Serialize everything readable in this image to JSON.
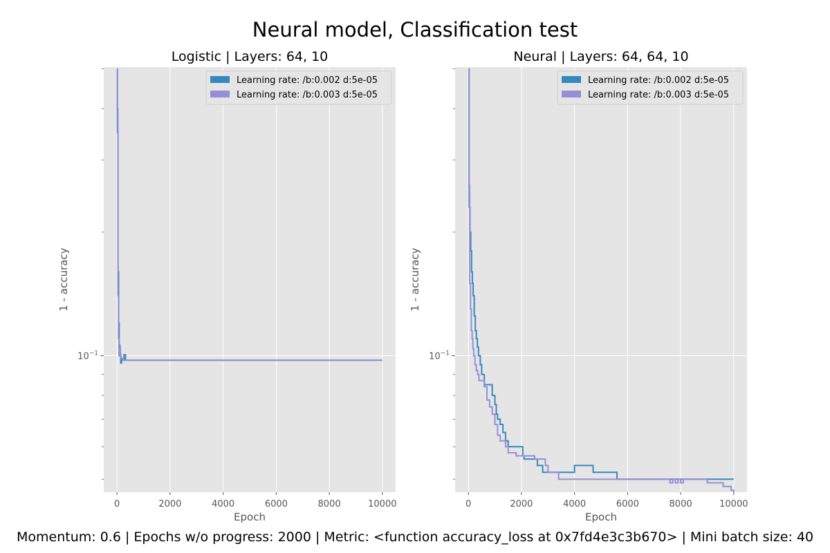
{
  "figure": {
    "suptitle": "Neural model, Classification test",
    "footer": "Momentum: 0.6 | Epochs w/o progress: 2000 | Metric: <function accuracy_loss at 0x7fd4e3c3b670> | Mini batch size: 40"
  },
  "colors": {
    "background": "#e5e5e5",
    "grid": "#ffffff",
    "series_1": "#348abd",
    "series_2": "#988ed5"
  },
  "chart_data": [
    {
      "type": "line",
      "title": "Logistic | Layers: 64, 10",
      "xlabel": "Epoch",
      "ylabel": "1 - accuracy",
      "yscale": "log",
      "xlim": [
        -500,
        10500
      ],
      "ylim": [
        0.0465,
        0.505
      ],
      "xticks": [
        0,
        2000,
        4000,
        6000,
        8000,
        10000
      ],
      "xtick_labels": [
        "0",
        "2000",
        "4000",
        "6000",
        "8000",
        "10000"
      ],
      "yticks": [
        0.1
      ],
      "ytick_labels": [
        "10^-1"
      ],
      "grid": true,
      "legend_position": "top-right",
      "series": [
        {
          "name": "Learning rate: /b:0.002 d:5e-05",
          "x": [
            0,
            15,
            40,
            60,
            80,
            110,
            140,
            170,
            200,
            260,
            320,
            10000
          ],
          "y": [
            0.5,
            0.35,
            0.16,
            0.12,
            0.106,
            0.101,
            0.096,
            0.0985,
            0.0975,
            0.1005,
            0.0975,
            0.0975
          ]
        },
        {
          "name": "Learning rate: /b:0.003 d:5e-05",
          "x": [
            0,
            12,
            35,
            55,
            75,
            100,
            130,
            160,
            220,
            300,
            10000
          ],
          "y": [
            0.5,
            0.4,
            0.14,
            0.11,
            0.1,
            0.104,
            0.099,
            0.0985,
            0.0975,
            0.0975,
            0.0975
          ]
        }
      ]
    },
    {
      "type": "line",
      "title": "Neural | Layers: 64, 64, 10",
      "xlabel": "Epoch",
      "ylabel": "1 - accuracy",
      "yscale": "log",
      "xlim": [
        -500,
        10500
      ],
      "ylim": [
        0.0465,
        0.505
      ],
      "xticks": [
        0,
        2000,
        4000,
        6000,
        8000,
        10000
      ],
      "xtick_labels": [
        "0",
        "2000",
        "4000",
        "6000",
        "8000",
        "10000"
      ],
      "yticks": [
        0.1
      ],
      "ytick_labels": [
        "10^-1"
      ],
      "grid": true,
      "legend_position": "top-right",
      "series": [
        {
          "name": "Learning rate: /b:0.002 d:5e-05",
          "x": [
            0,
            30,
            60,
            90,
            120,
            150,
            180,
            220,
            260,
            300,
            340,
            380,
            450,
            500,
            600,
            700,
            800,
            900,
            1000,
            1050,
            1100,
            1200,
            1300,
            1400,
            1500,
            1700,
            2000,
            2050,
            2100,
            2600,
            2800,
            2900,
            3200,
            4000,
            4700,
            5600,
            10000
          ],
          "y": [
            0.5,
            0.23,
            0.2,
            0.18,
            0.16,
            0.15,
            0.14,
            0.125,
            0.115,
            0.11,
            0.105,
            0.1,
            0.095,
            0.09,
            0.085,
            0.085,
            0.085,
            0.08,
            0.076,
            0.072,
            0.07,
            0.068,
            0.065,
            0.062,
            0.06,
            0.06,
            0.06,
            0.057,
            0.056,
            0.054,
            0.052,
            0.052,
            0.052,
            0.054,
            0.052,
            0.05,
            0.05
          ]
        },
        {
          "name": "Learning rate: /b:0.003 d:5e-05",
          "x": [
            0,
            25,
            50,
            80,
            110,
            140,
            170,
            200,
            250,
            300,
            350,
            400,
            500,
            600,
            700,
            800,
            900,
            1000,
            1100,
            1200,
            1400,
            1500,
            1600,
            1800,
            2000,
            2500,
            2900,
            3000,
            3400,
            7600,
            7700,
            7800,
            7900,
            8000,
            8100,
            9000,
            9100,
            9600,
            9900,
            10000
          ],
          "y": [
            0.5,
            0.26,
            0.15,
            0.13,
            0.115,
            0.11,
            0.104,
            0.1,
            0.095,
            0.092,
            0.09,
            0.087,
            0.087,
            0.084,
            0.078,
            0.075,
            0.072,
            0.068,
            0.064,
            0.062,
            0.06,
            0.058,
            0.058,
            0.057,
            0.057,
            0.056,
            0.054,
            0.052,
            0.05,
            0.049,
            0.05,
            0.049,
            0.05,
            0.049,
            0.05,
            0.049,
            0.049,
            0.048,
            0.047,
            0.0465
          ]
        }
      ]
    }
  ]
}
